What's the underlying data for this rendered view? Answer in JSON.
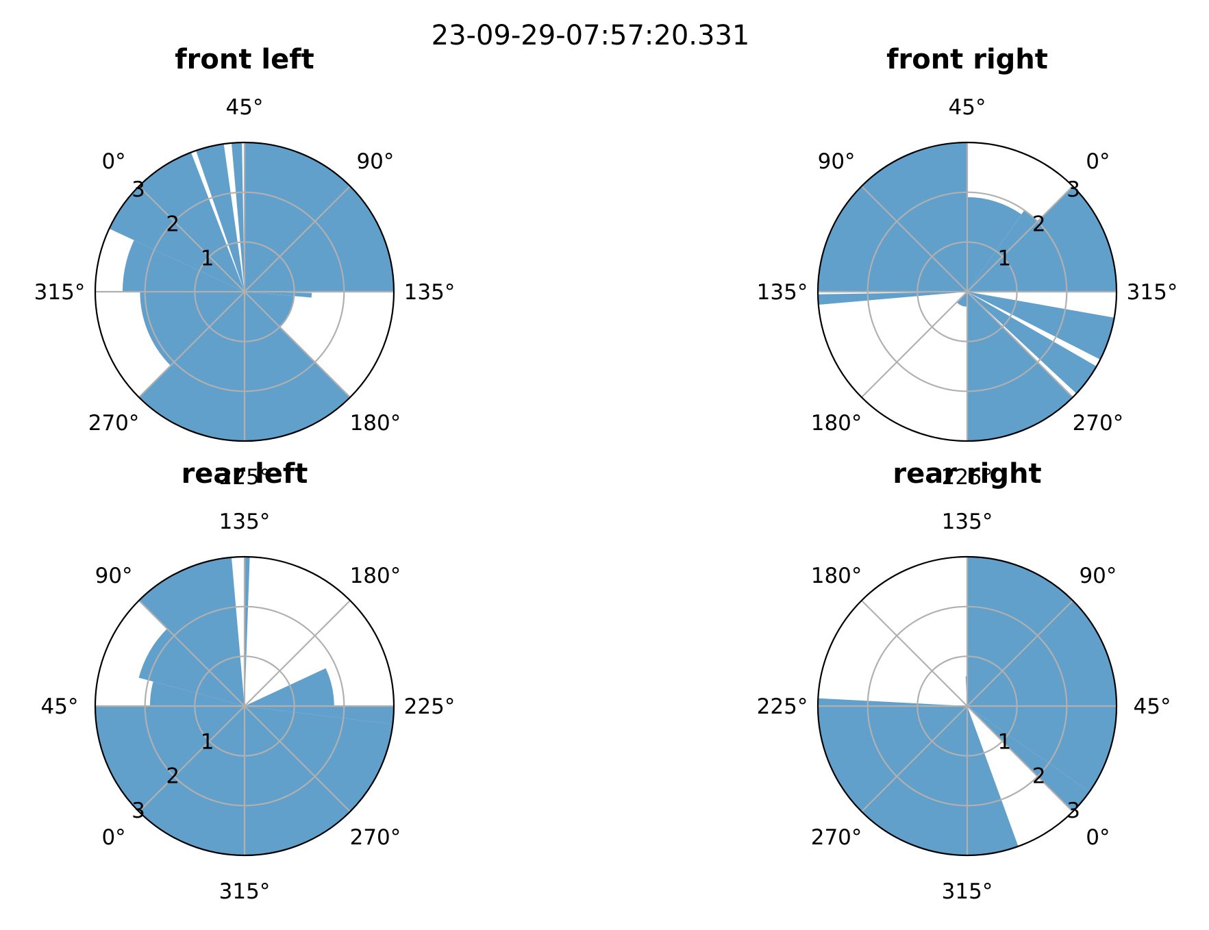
{
  "colors": {
    "fill": "#62a0cc",
    "grid": "#b0b0b0",
    "frame": "#000000",
    "text": "#000000"
  },
  "chart_data": {
    "type": "polar-bar",
    "suptitle": "23-09-29-07:57:20.331",
    "radial_ticks": [
      "1",
      "2",
      "3"
    ],
    "rlim": [
      0,
      3
    ],
    "grid": true,
    "panels": [
      {
        "title": "front left",
        "theta_ticks": [
          "0°",
          "45°",
          "90°",
          "135°",
          "180°",
          "225°",
          "270°",
          "315°"
        ],
        "theta_zero_label_at": 135,
        "direction": "clockwise",
        "segments": [
          {
            "from": 0,
            "to": 24,
            "r": 3.0
          },
          {
            "from": 26,
            "to": 37,
            "r": 3.0
          },
          {
            "from": 40,
            "to": 44,
            "r": 3.0
          },
          {
            "from": 45,
            "to": 135,
            "r": 3.0
          },
          {
            "from": 136,
            "to": 140,
            "r": 1.35
          },
          {
            "from": 140,
            "to": 180,
            "r": 1.0
          },
          {
            "from": 180,
            "to": 225,
            "r": 3.0
          },
          {
            "from": 225,
            "to": 270,
            "r": 3.0
          },
          {
            "from": 270,
            "to": 315,
            "r": 2.1
          },
          {
            "from": 315,
            "to": 340,
            "r": 2.45
          },
          {
            "from": 340,
            "to": 360,
            "r": 3.0
          }
        ]
      },
      {
        "title": "front right",
        "theta_ticks": [
          "0°",
          "45°",
          "90°",
          "135°",
          "180°",
          "225°",
          "270°",
          "315°"
        ],
        "theta_zero_label_at": 45,
        "direction": "counterclockwise",
        "segments": [
          {
            "from": 0,
            "to": 10,
            "r": 2.0
          },
          {
            "from": 10,
            "to": 45,
            "r": 1.9
          },
          {
            "from": 45,
            "to": 90,
            "r": 3.0
          },
          {
            "from": 90,
            "to": 135,
            "r": 3.0
          },
          {
            "from": 136,
            "to": 140,
            "r": 3.0
          },
          {
            "from": 180,
            "to": 225,
            "r": 0.3
          },
          {
            "from": 225,
            "to": 270,
            "r": 3.0
          },
          {
            "from": 272,
            "to": 285,
            "r": 3.0
          },
          {
            "from": 288,
            "to": 305,
            "r": 3.0
          },
          {
            "from": 315,
            "to": 360,
            "r": 3.0
          }
        ]
      },
      {
        "title": "rear left",
        "theta_ticks": [
          "0°",
          "45°",
          "90°",
          "135°",
          "180°",
          "225°",
          "270°",
          "315°"
        ],
        "theta_zero_label_at": 225,
        "direction": "clockwise",
        "segments": [
          {
            "from": 0,
            "to": 45,
            "r": 3.0
          },
          {
            "from": 45,
            "to": 60,
            "r": 1.9
          },
          {
            "from": 60,
            "to": 90,
            "r": 2.2
          },
          {
            "from": 90,
            "to": 130,
            "r": 3.0
          },
          {
            "from": 135,
            "to": 137,
            "r": 3.0
          },
          {
            "from": 200,
            "to": 225,
            "r": 1.8
          },
          {
            "from": 225,
            "to": 232,
            "r": 3.0
          },
          {
            "from": 232,
            "to": 270,
            "r": 3.0
          },
          {
            "from": 270,
            "to": 315,
            "r": 3.0
          },
          {
            "from": 315,
            "to": 360,
            "r": 3.0
          }
        ]
      },
      {
        "title": "rear right",
        "theta_ticks": [
          "0°",
          "45°",
          "90°",
          "135°",
          "180°",
          "225°",
          "270°",
          "315°"
        ],
        "theta_zero_label_at": 315,
        "direction": "counterclockwise",
        "segments": [
          {
            "from": 0,
            "to": 10,
            "r": 3.0
          },
          {
            "from": 10,
            "to": 45,
            "r": 3.0
          },
          {
            "from": 45,
            "to": 90,
            "r": 3.0
          },
          {
            "from": 90,
            "to": 135,
            "r": 3.0
          },
          {
            "from": 135,
            "to": 138,
            "r": 0.6
          },
          {
            "from": 222,
            "to": 225,
            "r": 3.0
          },
          {
            "from": 225,
            "to": 315,
            "r": 3.0
          },
          {
            "from": 315,
            "to": 335,
            "r": 3.0
          }
        ]
      }
    ]
  }
}
